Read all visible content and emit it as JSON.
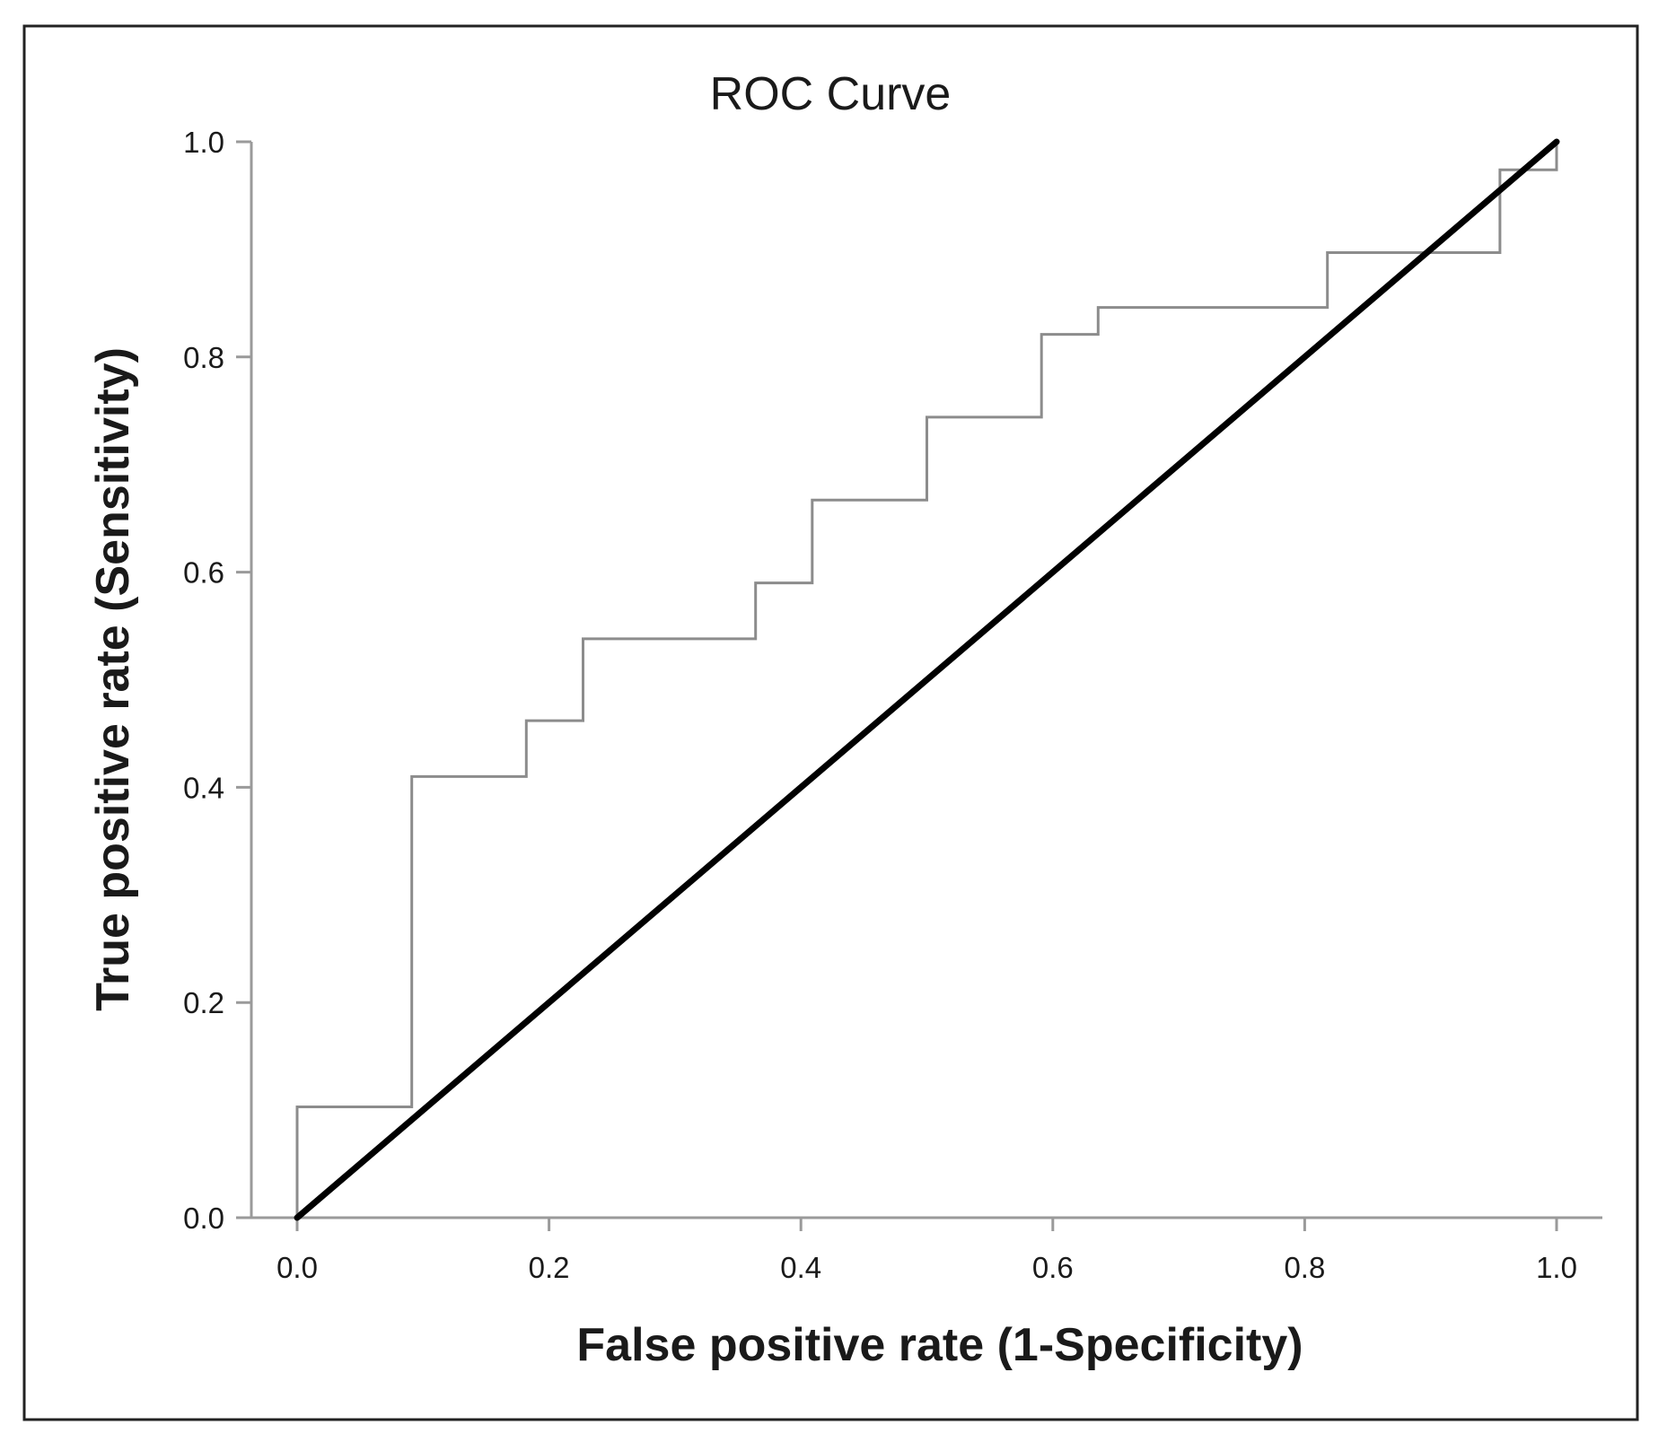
{
  "chart_data": {
    "type": "line",
    "title": "ROC Curve",
    "xlabel": "False positive rate (1-Specificity)",
    "ylabel": "True positive rate (Sensitivity)",
    "xlim": [
      0,
      1
    ],
    "ylim": [
      0,
      1
    ],
    "x_ticks": [
      "0.0",
      "0.2",
      "0.4",
      "0.6",
      "0.8",
      "1.0"
    ],
    "y_ticks": [
      "0.0",
      "0.2",
      "0.4",
      "0.6",
      "0.8",
      "1.0"
    ],
    "grid": false,
    "legend": "none",
    "series": [
      {
        "style": "step",
        "color": "#8c8c8c",
        "x": [
          0.0,
          0.0,
          0.091,
          0.091,
          0.182,
          0.182,
          0.227,
          0.227,
          0.364,
          0.364,
          0.409,
          0.409,
          0.5,
          0.5,
          0.591,
          0.591,
          0.636,
          0.636,
          0.818,
          0.818,
          0.955,
          0.955,
          1.0,
          1.0
        ],
        "y": [
          0.0,
          0.103,
          0.103,
          0.41,
          0.41,
          0.462,
          0.462,
          0.538,
          0.538,
          0.59,
          0.59,
          0.667,
          0.667,
          0.744,
          0.744,
          0.821,
          0.821,
          0.846,
          0.846,
          0.897,
          0.897,
          0.974,
          0.974,
          1.0
        ]
      },
      {
        "style": "reference",
        "color": "#000000",
        "x": [
          0.0,
          1.0
        ],
        "y": [
          0.0,
          1.0
        ]
      }
    ]
  }
}
